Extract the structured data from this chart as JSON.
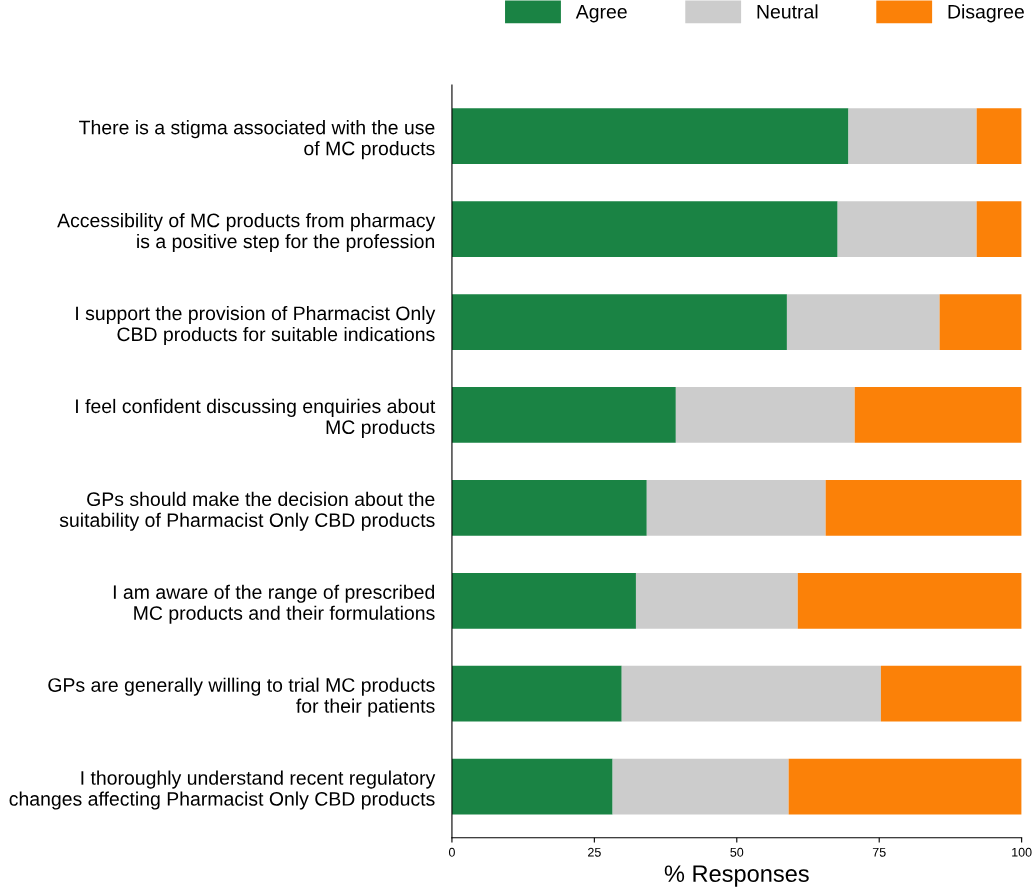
{
  "chart_data": {
    "type": "bar",
    "orientation": "horizontal",
    "stacked": true,
    "xlabel": "% Responses",
    "categories": [
      "There is a stigma associated with the use\nof MC products",
      "Accessibility of MC products from pharmacy\nis a positive step for the profession",
      "I support the provision of Pharmacist Only\nCBD products for suitable indications",
      "I feel confident discussing enquiries about\nMC products",
      "GPs should make the decision about the\nsuitability of Pharmacist Only CBD products",
      "I am aware of the range of prescribed\nMC products and their formulations",
      "GPs are generally willing to trial MC products\nfor their patients",
      "I thoroughly understand recent regulatory\nchanges affecting Pharmacist Only CBD products"
    ],
    "series": [
      {
        "name": "Agree",
        "color": "#1a8344",
        "values": [
          69.6,
          67.7,
          58.8,
          39.3,
          34.2,
          32.3,
          29.8,
          28.2
        ]
      },
      {
        "name": "Neutral",
        "color": "#cccccc",
        "values": [
          22.5,
          24.4,
          26.8,
          31.4,
          31.4,
          28.4,
          45.5,
          30.9
        ]
      },
      {
        "name": "Disagree",
        "color": "#fb8108",
        "values": [
          7.9,
          7.9,
          14.4,
          29.3,
          34.4,
          39.3,
          24.7,
          40.9
        ]
      }
    ],
    "xlim": [
      0,
      100
    ],
    "xticks": [
      0,
      25,
      50,
      75,
      100
    ],
    "legend": "top",
    "grid": false
  }
}
